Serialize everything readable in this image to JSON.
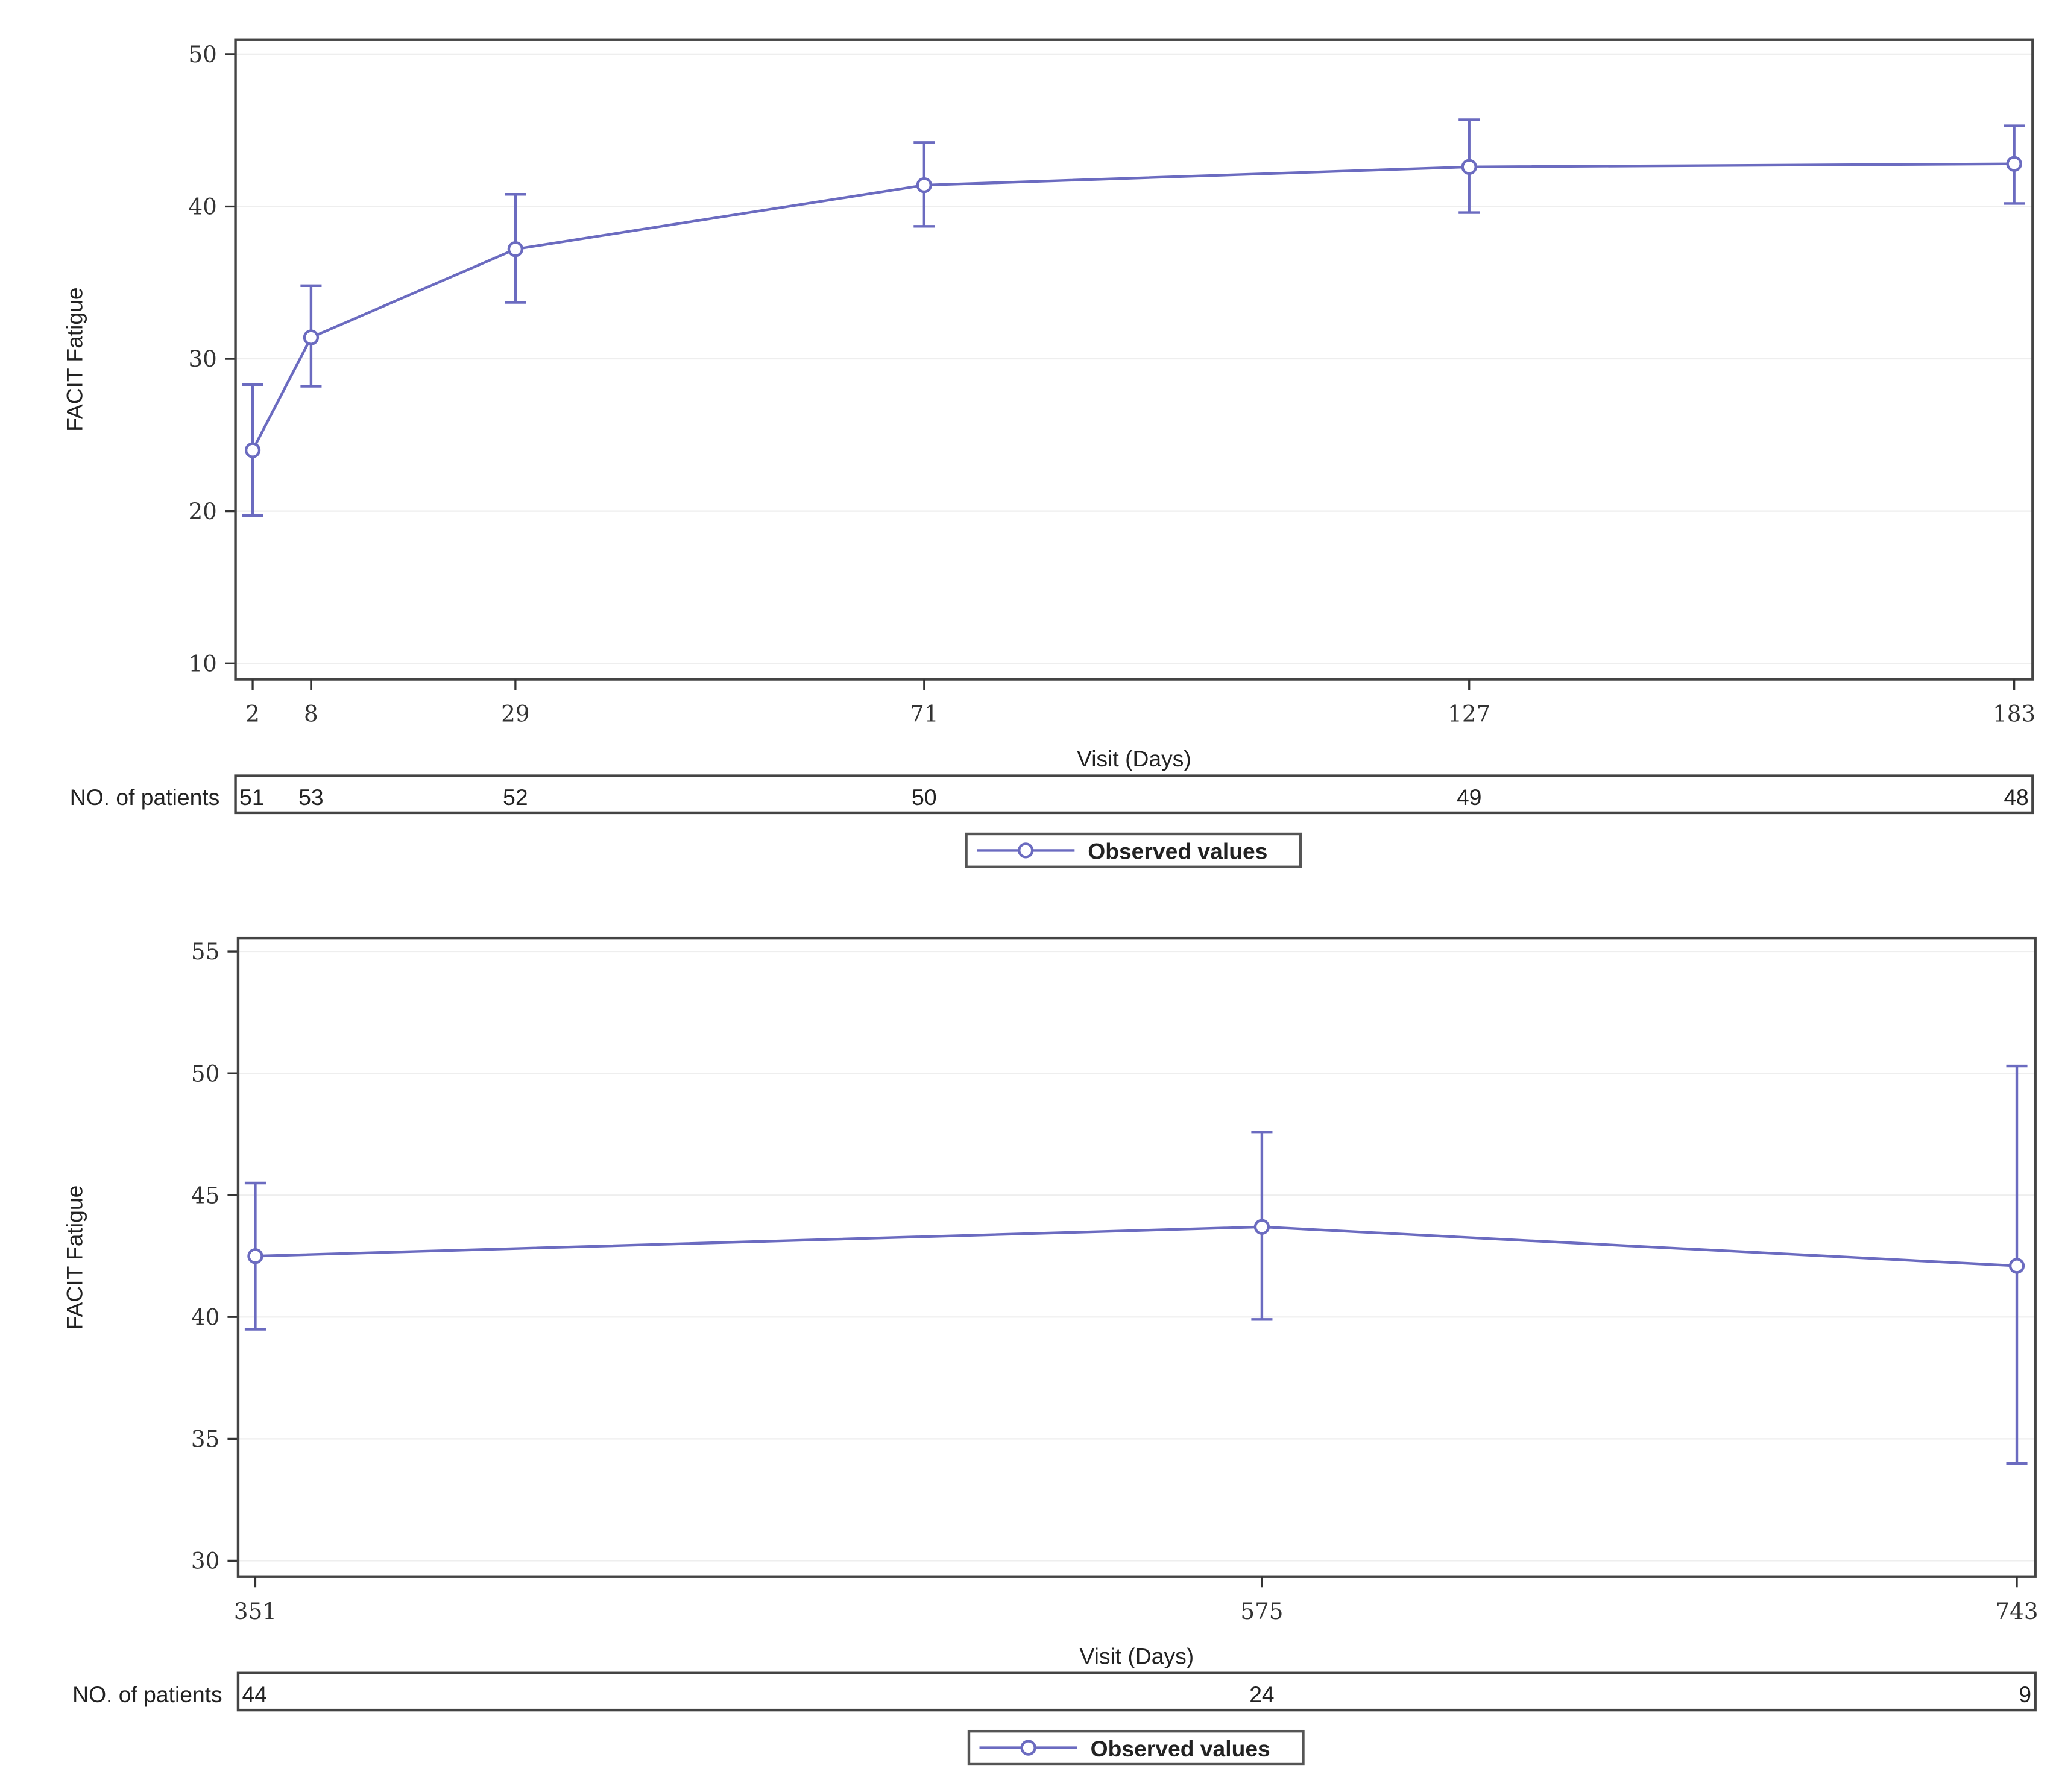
{
  "chart_data": [
    {
      "type": "line",
      "xlabel": "Visit (Days)",
      "ylabel": "FACIT Fatigue",
      "ylim": [
        10,
        50
      ],
      "yticks": [
        10,
        20,
        30,
        40,
        50
      ],
      "xlim": [
        2,
        183
      ],
      "x": [
        2,
        8,
        29,
        71,
        127,
        183
      ],
      "series": [
        {
          "name": "Observed values",
          "values": [
            24.0,
            31.4,
            37.2,
            41.4,
            42.6,
            42.8
          ],
          "lower": [
            19.7,
            28.2,
            33.7,
            38.7,
            39.6,
            40.2
          ],
          "upper": [
            28.3,
            34.8,
            40.8,
            44.2,
            45.7,
            45.3
          ]
        }
      ],
      "patients_label": "NO. of patients",
      "patients": [
        51,
        53,
        52,
        50,
        49,
        48
      ],
      "grid": true,
      "legend": "bottom",
      "color": "#6b6bc0"
    },
    {
      "type": "line",
      "xlabel": "Visit (Days)",
      "ylabel": "FACIT Fatigue",
      "ylim": [
        30,
        55
      ],
      "yticks": [
        30,
        35,
        40,
        45,
        50,
        55
      ],
      "xlim": [
        351,
        743
      ],
      "x": [
        351,
        575,
        743
      ],
      "series": [
        {
          "name": "Observed values",
          "values": [
            42.5,
            43.7,
            42.1
          ],
          "lower": [
            39.5,
            39.9,
            34.0
          ],
          "upper": [
            45.5,
            47.6,
            50.3
          ]
        }
      ],
      "patients_label": "NO. of patients",
      "patients": [
        44,
        24,
        9
      ],
      "grid": true,
      "legend": "bottom",
      "color": "#6b6bc0"
    }
  ]
}
